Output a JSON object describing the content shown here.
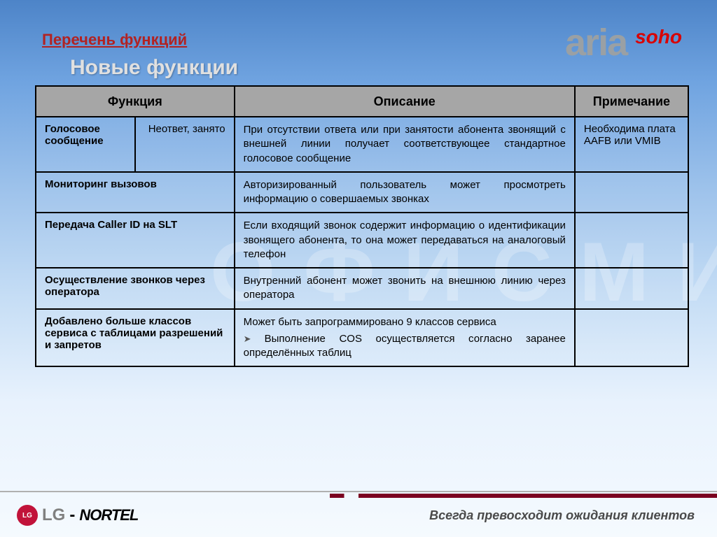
{
  "header": {
    "section_title": "Перечень функций",
    "subtitle": "Новые функции",
    "logo_aria": "aria",
    "logo_soho": "soho"
  },
  "watermark": "ОФИСМИР",
  "colors": {
    "bg_gradient_top": "#4d84c8",
    "bg_gradient_bottom": "#f5fafe",
    "section_title": "#b22222",
    "subtitle": "#e0e0e0",
    "logo_aria": "#9aa0a4",
    "logo_soho": "#d90000",
    "table_border": "#000000",
    "header_row_bg": "#a6a6a6",
    "footer_accent": "#7a0020",
    "slogan": "#4a4a4a"
  },
  "table": {
    "columns": [
      "Функция",
      "Описание",
      "Примечание"
    ],
    "rows": [
      {
        "func": "Голосовое сообщение",
        "sub": "Неответ, занято",
        "desc": [
          "При отсутствии ответа или при занятости абонента звонящий с внешней линии получает соответствующее стандартное голосовое сообщение"
        ],
        "note": "Необходима плата AAFB или VMIB",
        "split_func": true
      },
      {
        "func": "Мониторинг вызовов",
        "desc": [
          "Авторизированный пользователь может просмотреть информацию о совершаемых звонках"
        ],
        "note": ""
      },
      {
        "func": "Передача Caller ID на SLT",
        "desc": [
          "Если входящий звонок содержит информацию о идентификации звонящего абонента, то она может передаваться на аналоговый телефон"
        ],
        "note": ""
      },
      {
        "func": "Осуществление звонков через оператора",
        "desc": [
          "Внутренний абонент может звонить на внешнюю линию через оператора"
        ],
        "note": ""
      },
      {
        "func": "Добавлено больше классов сервиса с таблицами разрешений и запретов",
        "desc": [
          "Может быть запрограммировано 9 классов сервиса"
        ],
        "desc_bullet": [
          "Выполнение COS осуществляется согласно заранее определённых таблиц"
        ],
        "note": ""
      }
    ]
  },
  "footer": {
    "lg": "LG",
    "nortel": "NORTEL",
    "slogan": "Всегда превосходит ожидания клиентов"
  }
}
